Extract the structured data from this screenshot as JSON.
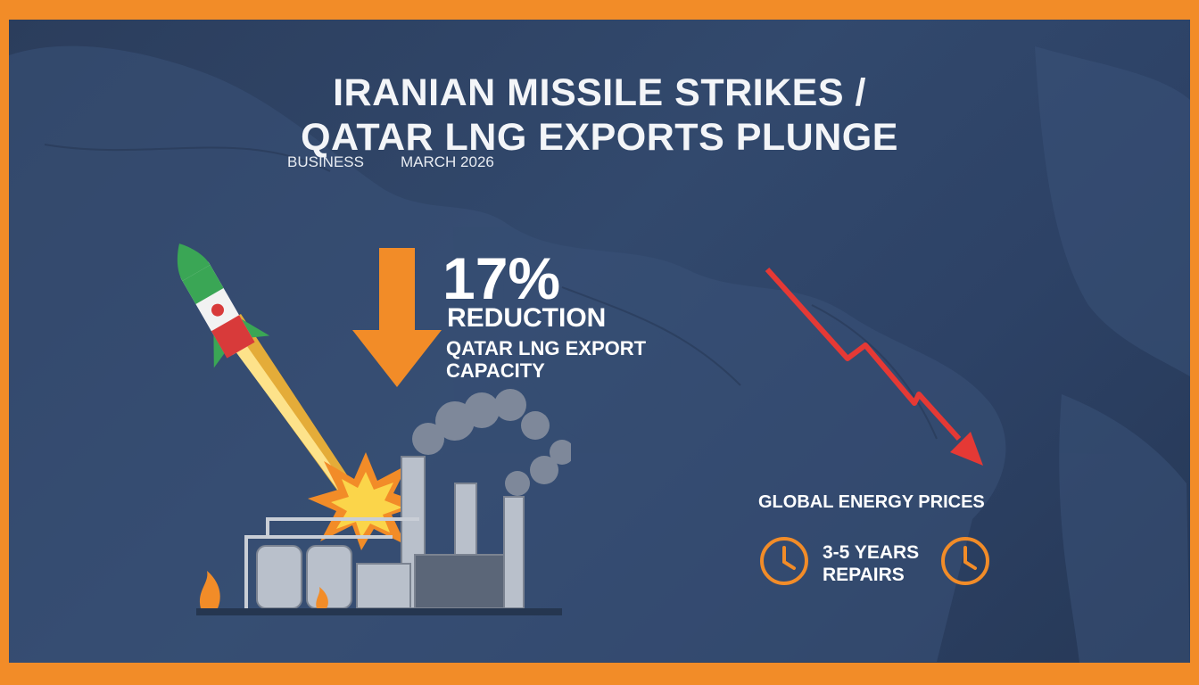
{
  "headline": {
    "line1": "IRANIAN MISSILE STRIKES /",
    "line2": "QATAR LNG EXPORTS PLUNGE"
  },
  "meta": {
    "category": "BUSINESS",
    "date": "MARCH 2026"
  },
  "stat": {
    "value": "17%",
    "label": "REDUCTION",
    "description_line1": "QATAR LNG EXPORT",
    "description_line2": "CAPACITY"
  },
  "energy_label": "GLOBAL ENERGY PRICES",
  "repairs": {
    "line1": "3-5 YEARS",
    "line2": "REPAIRS"
  },
  "colors": {
    "frame": "#f28c28",
    "background": "#2e4468",
    "accent_orange": "#f28c28",
    "trend_red": "#e53935",
    "missile_green": "#3aa655"
  },
  "icons": [
    "down-arrow-icon",
    "missile-icon",
    "explosion-icon",
    "refinery-icon",
    "trend-down-arrow-icon",
    "clock-icon"
  ]
}
